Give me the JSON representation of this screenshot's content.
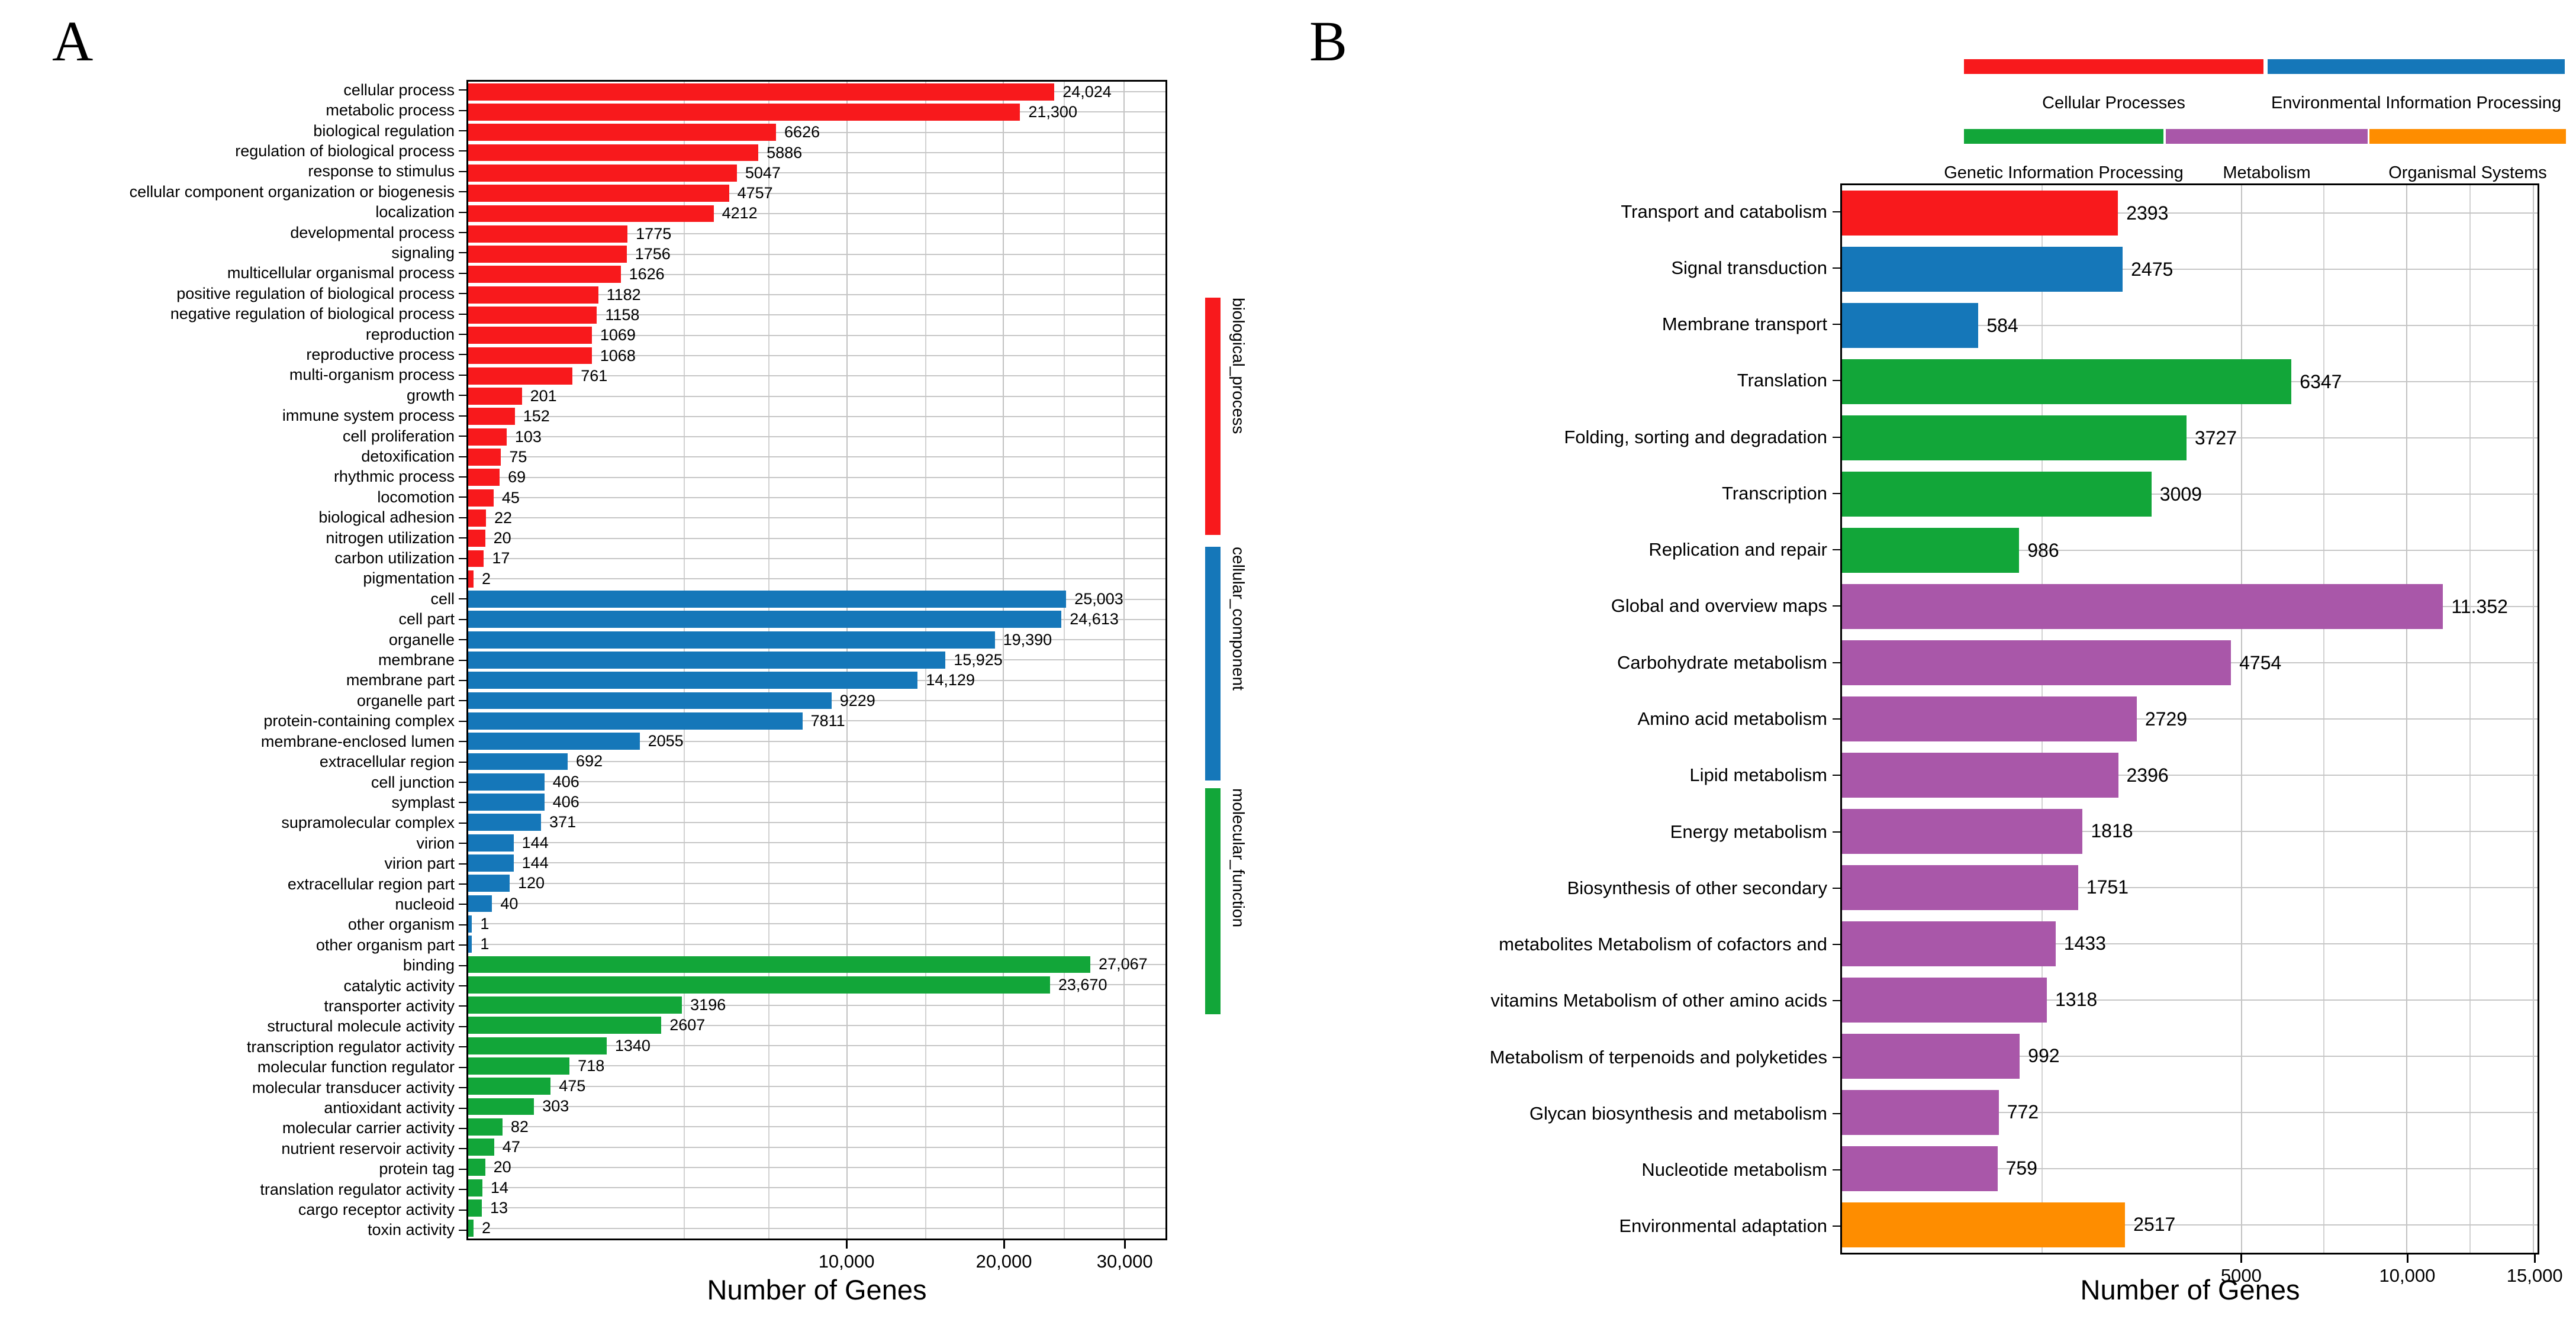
{
  "figure": {
    "panel_a_letter": "A",
    "panel_b_letter": "B"
  },
  "colors": {
    "red": "#f8191c",
    "blue": "#1577b9",
    "green": "#12a639",
    "purple": "#a957a9",
    "orange": "#fe8d00",
    "grid": "#c6c6c6",
    "axis": "#000000"
  },
  "chart_data": [
    {
      "id": "A",
      "type": "bar",
      "orientation": "horizontal",
      "xlabel": "Number of Genes",
      "x_scale": "sqrt",
      "x_max": 34000,
      "x_ticks": [
        {
          "value": 10000,
          "label": "10,000"
        },
        {
          "value": 20000,
          "label": "20,000"
        },
        {
          "value": 30000,
          "label": "30,000"
        }
      ],
      "x_minor_gridlines": [
        3250,
        6300,
        14600,
        24800
      ],
      "grid": true,
      "facets": [
        {
          "name": "biological_process",
          "color_key": "red",
          "strip_top_pct": 18.77,
          "strip_height_pct": 20.45,
          "bars": [
            {
              "label": "cellular process",
              "value": 24024,
              "display": "24,024"
            },
            {
              "label": "metabolic process",
              "value": 21300,
              "display": "21,300"
            },
            {
              "label": "biological regulation",
              "value": 6626,
              "display": "6626"
            },
            {
              "label": "regulation of biological process",
              "value": 5886,
              "display": "5886"
            },
            {
              "label": "response to stimulus",
              "value": 5047,
              "display": "5047"
            },
            {
              "label": "cellular component organization or biogenesis",
              "value": 4757,
              "display": "4757"
            },
            {
              "label": "localization",
              "value": 4212,
              "display": "4212"
            },
            {
              "label": "developmental process",
              "value": 1775,
              "display": "1775"
            },
            {
              "label": "signaling",
              "value": 1756,
              "display": "1756"
            },
            {
              "label": "multicellular organismal process",
              "value": 1626,
              "display": "1626"
            },
            {
              "label": "positive regulation of biological process",
              "value": 1182,
              "display": "1182"
            },
            {
              "label": "negative regulation of biological process",
              "value": 1158,
              "display": "1158"
            },
            {
              "label": "reproduction",
              "value": 1069,
              "display": "1069"
            },
            {
              "label": "reproductive process",
              "value": 1068,
              "display": "1068"
            },
            {
              "label": "multi-organism process",
              "value": 761,
              "display": "761"
            },
            {
              "label": "growth",
              "value": 201,
              "display": "201"
            },
            {
              "label": "immune system process",
              "value": 152,
              "display": "152"
            },
            {
              "label": "cell proliferation",
              "value": 103,
              "display": "103"
            },
            {
              "label": "detoxification",
              "value": 75,
              "display": "75"
            },
            {
              "label": "rhythmic process",
              "value": 69,
              "display": "69"
            },
            {
              "label": "locomotion",
              "value": 45,
              "display": "45"
            },
            {
              "label": "biological adhesion",
              "value": 22,
              "display": "22"
            },
            {
              "label": "nitrogen utilization",
              "value": 20,
              "display": "20"
            },
            {
              "label": "carbon utilization",
              "value": 17,
              "display": "17"
            },
            {
              "label": "pigmentation",
              "value": 2,
              "display": "2"
            }
          ]
        },
        {
          "name": "cellular_component",
          "color_key": "blue",
          "strip_top_pct": 40.23,
          "strip_height_pct": 20.14,
          "bars": [
            {
              "label": "cell",
              "value": 25003,
              "display": "25,003"
            },
            {
              "label": "cell part",
              "value": 24613,
              "display": "24,613"
            },
            {
              "label": "organelle",
              "value": 19390,
              "display": "19,390"
            },
            {
              "label": "membrane",
              "value": 15925,
              "display": "15,925"
            },
            {
              "label": "membrane part",
              "value": 14129,
              "display": "14,129"
            },
            {
              "label": "organelle part",
              "value": 9229,
              "display": "9229"
            },
            {
              "label": "protein-containing complex",
              "value": 7811,
              "display": "7811"
            },
            {
              "label": "membrane-enclosed lumen",
              "value": 2055,
              "display": "2055"
            },
            {
              "label": "extracellular region",
              "value": 692,
              "display": "692"
            },
            {
              "label": "cell junction",
              "value": 406,
              "display": "406"
            },
            {
              "label": "symplast",
              "value": 406,
              "display": "406"
            },
            {
              "label": "supramolecular complex",
              "value": 371,
              "display": "371"
            },
            {
              "label": "virion",
              "value": 144,
              "display": "144"
            },
            {
              "label": "virion part",
              "value": 144,
              "display": "144"
            },
            {
              "label": "extracellular region part",
              "value": 120,
              "display": "120"
            },
            {
              "label": "nucleoid",
              "value": 40,
              "display": "40"
            },
            {
              "label": "other organism",
              "value": 1,
              "display": "1"
            },
            {
              "label": "other organism part",
              "value": 1,
              "display": "1"
            }
          ]
        },
        {
          "name": "molecular_function",
          "color_key": "green",
          "strip_top_pct": 61.04,
          "strip_height_pct": 19.48,
          "bars": [
            {
              "label": "binding",
              "value": 27067,
              "display": "27,067"
            },
            {
              "label": "catalytic activity",
              "value": 23670,
              "display": "23,670"
            },
            {
              "label": "transporter activity",
              "value": 3196,
              "display": "3196"
            },
            {
              "label": "structural molecule activity",
              "value": 2607,
              "display": "2607"
            },
            {
              "label": "transcription regulator activity",
              "value": 1340,
              "display": "1340"
            },
            {
              "label": "molecular function regulator",
              "value": 718,
              "display": "718"
            },
            {
              "label": "molecular transducer activity",
              "value": 475,
              "display": "475"
            },
            {
              "label": "antioxidant activity",
              "value": 303,
              "display": "303"
            },
            {
              "label": "molecular carrier activity",
              "value": 82,
              "display": "82"
            },
            {
              "label": "nutrient reservoir activity",
              "value": 47,
              "display": "47"
            },
            {
              "label": "protein tag",
              "value": 20,
              "display": "20"
            },
            {
              "label": "translation regulator activity",
              "value": 14,
              "display": "14"
            },
            {
              "label": "cargo receptor activity",
              "value": 13,
              "display": "13"
            },
            {
              "label": "toxin activity",
              "value": 2,
              "display": "2"
            }
          ]
        }
      ]
    },
    {
      "id": "B",
      "type": "bar",
      "orientation": "horizontal",
      "xlabel": "Number of Genes",
      "x_scale": "sqrt",
      "x_max": 15200,
      "x_ticks": [
        {
          "value": 5000,
          "label": "5000"
        },
        {
          "value": 10000,
          "label": "10,000"
        },
        {
          "value": 15000,
          "label": "15,000"
        }
      ],
      "x_minor_gridlines": [
        1250,
        7285,
        12372
      ],
      "grid": true,
      "bars": [
        {
          "label": "Transport and catabolism",
          "value": 2393,
          "display": "2393",
          "color_key": "red"
        },
        {
          "label": "Signal transduction",
          "value": 2475,
          "display": "2475",
          "color_key": "blue"
        },
        {
          "label": "Membrane transport",
          "value": 584,
          "display": "584",
          "color_key": "blue"
        },
        {
          "label": "Translation",
          "value": 6347,
          "display": "6347",
          "color_key": "green"
        },
        {
          "label": "Folding, sorting and degradation",
          "value": 3727,
          "display": "3727",
          "color_key": "green"
        },
        {
          "label": "Transcription",
          "value": 3009,
          "display": "3009",
          "color_key": "green"
        },
        {
          "label": "Replication and repair",
          "value": 986,
          "display": "986",
          "color_key": "green"
        },
        {
          "label": "Global and overview maps",
          "value": 11352,
          "display": "11.352",
          "color_key": "purple"
        },
        {
          "label": "Carbohydrate metabolism",
          "value": 4754,
          "display": "4754",
          "color_key": "purple"
        },
        {
          "label": "Amino acid metabolism",
          "value": 2729,
          "display": "2729",
          "color_key": "purple"
        },
        {
          "label": "Lipid metabolism",
          "value": 2396,
          "display": "2396",
          "color_key": "purple"
        },
        {
          "label": "Energy metabolism",
          "value": 1818,
          "display": "1818",
          "color_key": "purple"
        },
        {
          "label": "Biosynthesis of other secondary",
          "value": 1751,
          "display": "1751",
          "color_key": "purple"
        },
        {
          "label": "metabolites Metabolism of cofactors and",
          "value": 1433,
          "display": "1433",
          "color_key": "purple"
        },
        {
          "label": "vitamins Metabolism of other amino acids",
          "value": 1318,
          "display": "1318",
          "color_key": "purple"
        },
        {
          "label": "Metabolism of terpenoids and polyketides",
          "value": 992,
          "display": "992",
          "color_key": "purple"
        },
        {
          "label": "Glycan biosynthesis and metabolism",
          "value": 772,
          "display": "772",
          "color_key": "purple"
        },
        {
          "label": "Nucleotide metabolism",
          "value": 759,
          "display": "759",
          "color_key": "purple"
        },
        {
          "label": "Environmental adaptation",
          "value": 2517,
          "display": "2517",
          "color_key": "orange"
        }
      ],
      "legend": {
        "position": "top-right",
        "rows": [
          [
            {
              "label": "Cellular Processes",
              "color_key": "red",
              "swatch_left": 3318,
              "swatch_width": 506
            },
            {
              "label": "Environmental Information Processing",
              "color_key": "blue",
              "swatch_left": 3831,
              "swatch_width": 502
            }
          ],
          [
            {
              "label": "Genetic Information Processing",
              "color_key": "green",
              "swatch_left": 3318,
              "swatch_width": 337
            },
            {
              "label": "Metabolism",
              "color_key": "purple",
              "swatch_left": 3659,
              "swatch_width": 341
            },
            {
              "label": "Organismal Systems",
              "color_key": "orange",
              "swatch_left": 4003,
              "swatch_width": 332
            }
          ]
        ]
      }
    }
  ]
}
